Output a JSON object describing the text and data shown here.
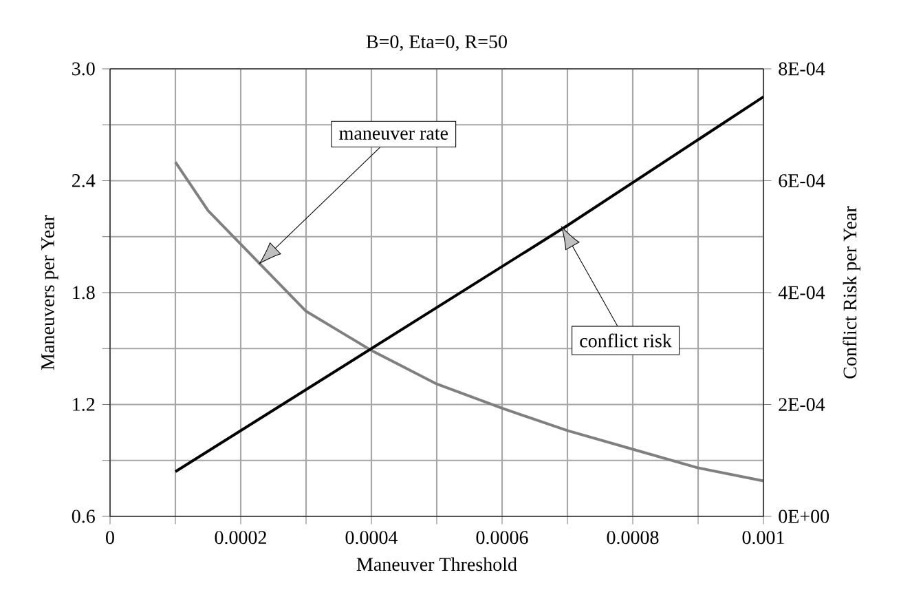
{
  "chart_data": {
    "type": "line",
    "title": "B=0, Eta=0, R=50",
    "xlabel": "Maneuver Threshold",
    "ylabel": "Maneuvers per Year",
    "y2label": "Conflict Risk per Year",
    "x": [
      0.0001,
      0.00015,
      0.0002,
      0.0003,
      0.0004,
      0.0005,
      0.0006,
      0.0007,
      0.0008,
      0.0009,
      0.001
    ],
    "series": [
      {
        "color": "#808080",
        "values": [
          2.5,
          2.24,
          2.06,
          1.7,
          1.49,
          1.31,
          1.18,
          1.06,
          0.96,
          0.86,
          0.79
        ]
      },
      {
        "color": "#000000",
        "axis": "y2",
        "x": [
          0.0001,
          0.0004,
          0.0007,
          0.001
        ],
        "values": [
          8e-05,
          0.0003,
          0.00052,
          0.00075
        ]
      }
    ],
    "xlim": [
      0,
      0.001
    ],
    "xticks": [
      0,
      {
        "value": 0.0001,
        "label": null
      },
      0.0002,
      {
        "value": 0.0003,
        "label": null
      },
      0.0004,
      {
        "value": 0.0005,
        "label": null
      },
      0.0006,
      {
        "value": 0.0007,
        "label": null
      },
      0.0008,
      {
        "value": 0.0009,
        "label": null
      },
      0.001
    ],
    "ylim": [
      0.6,
      3.0
    ],
    "yticks": [
      0.6,
      {
        "value": 0.9,
        "label": null
      },
      1.2,
      {
        "value": 1.5,
        "label": null
      },
      1.8,
      {
        "value": 2.1,
        "label": null
      },
      2.4,
      {
        "value": 2.7,
        "label": null
      },
      {
        "value": 3.0,
        "label": "3.0"
      }
    ],
    "y2lim": [
      0,
      0.0008
    ],
    "y2ticks": [
      {
        "value": 0,
        "label": "0E+00"
      },
      {
        "value": 0.0002,
        "label": "2E-04"
      },
      {
        "value": 0.0004,
        "label": "4E-04"
      },
      {
        "value": 0.0006,
        "label": "6E-04"
      },
      {
        "value": 0.0008,
        "label": "8E-04"
      }
    ],
    "grid": true,
    "annotations": [
      "maneuver rate",
      "conflict risk"
    ]
  }
}
